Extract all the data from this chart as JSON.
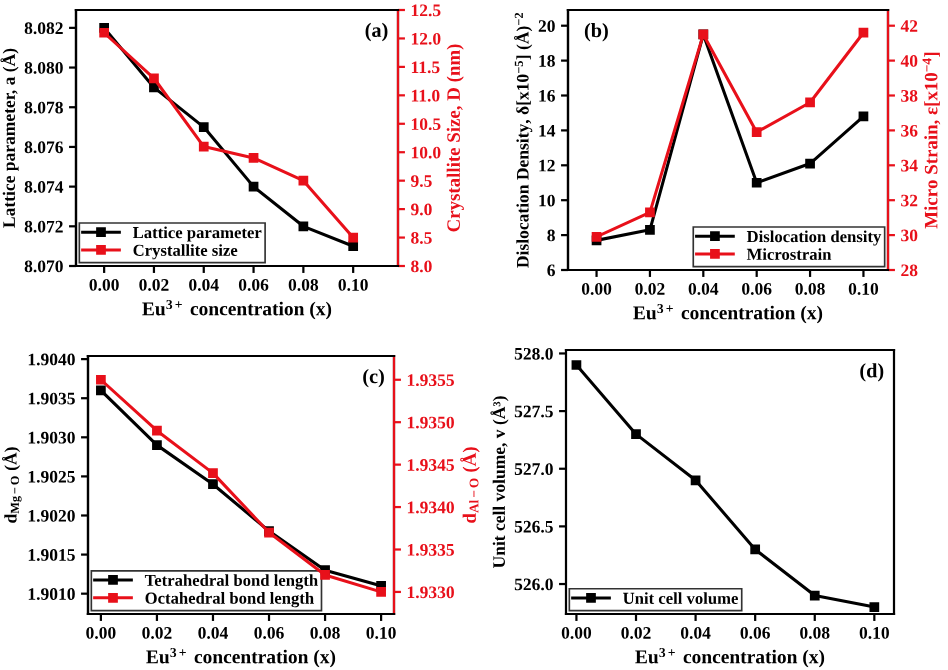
{
  "chart_data": [
    {
      "type": "line",
      "annotations": [
        "(a)"
      ],
      "xlabel": "Eu$^{3+}$ concentration (x)",
      "ylabel": "Lattice parameter, a (Å)",
      "y2label": "Crystallite Size, D (nm)",
      "x": [
        0.0,
        0.02,
        0.04,
        0.06,
        0.08,
        0.1
      ],
      "xlim": [
        -0.0113,
        0.118
      ],
      "xticks": [
        {
          "value": 0,
          "label": "0.00"
        },
        {
          "value": 0.02,
          "label": "0.02"
        },
        {
          "value": 0.04,
          "label": "0.04"
        },
        {
          "value": 0.06,
          "label": "0.06"
        },
        {
          "value": 0.08,
          "label": "0.08"
        },
        {
          "value": 0.1,
          "label": "0.10"
        }
      ],
      "ylim": [
        8.07,
        8.0829
      ],
      "yticks": [
        {
          "value": 8.07,
          "label": "8.070"
        },
        {
          "value": 8.072,
          "label": "8.072"
        },
        {
          "value": 8.074,
          "label": "8.074"
        },
        {
          "value": 8.076,
          "label": "8.076"
        },
        {
          "value": 8.078,
          "label": "8.078"
        },
        {
          "value": 8.08,
          "label": "8.080"
        },
        {
          "value": 8.082,
          "label": "8.082"
        }
      ],
      "y2lim": [
        8.0,
        12.5
      ],
      "y2ticks": [
        {
          "value": 8,
          "label": "8.0"
        },
        {
          "value": 8.5,
          "label": "8.5"
        },
        {
          "value": 9,
          "label": "9.0"
        },
        {
          "value": 9.5,
          "label": "9.5"
        },
        {
          "value": 10,
          "label": "10.0"
        },
        {
          "value": 10.5,
          "label": "10.5"
        },
        {
          "value": 11,
          "label": "11.0"
        },
        {
          "value": 11.5,
          "label": "11.5"
        },
        {
          "value": 12,
          "label": "12.0"
        },
        {
          "value": 12.5,
          "label": "12.5"
        }
      ],
      "marker": "square",
      "legend": "bottom left",
      "grid": false,
      "series": [
        {
          "name": "Lattice parameter",
          "color": "#000000",
          "values": [
            8.082,
            8.079,
            8.077,
            8.074,
            8.072,
            8.071
          ]
        },
        {
          "name": "Crystallite size",
          "color": "#e8101a",
          "axis": "y2",
          "values": [
            12.1,
            11.3,
            10.1,
            9.9,
            9.5,
            8.5
          ]
        }
      ]
    },
    {
      "type": "line",
      "annotations": [
        "(b)"
      ],
      "xlabel": "Eu$^{3+}$ concentration (x)",
      "ylabel": "Dislocation Density, δ[x10$^{−5}$] (Å)$^{−2}$",
      "y2label": "Micro Strain, ε[x10$^{−4}$]",
      "x": [
        0.0,
        0.02,
        0.04,
        0.06,
        0.08,
        0.1
      ],
      "xlim": [
        -0.0107,
        0.1092
      ],
      "xticks": [
        {
          "value": 0,
          "label": "0.00"
        },
        {
          "value": 0.02,
          "label": "0.02"
        },
        {
          "value": 0.04,
          "label": "0.04"
        },
        {
          "value": 0.06,
          "label": "0.06"
        },
        {
          "value": 0.08,
          "label": "0.08"
        },
        {
          "value": 0.1,
          "label": "0.10"
        }
      ],
      "ylim": [
        6,
        20.9
      ],
      "yticks": [
        6,
        8,
        10,
        12,
        14,
        16,
        18,
        20
      ],
      "y2lim": [
        28,
        42.9
      ],
      "y2ticks": [
        28,
        30,
        32,
        34,
        36,
        38,
        40,
        42
      ],
      "marker": "square",
      "legend": "bottom right",
      "grid": false,
      "series": [
        {
          "name": "Dislocation density",
          "color": "#000000",
          "values": [
            7.7,
            8.3,
            19.5,
            11.0,
            12.1,
            14.8
          ]
        },
        {
          "name": "Microstrain",
          "color": "#e8101a",
          "axis": "y2",
          "values": [
            29.9,
            31.3,
            41.5,
            35.9,
            37.6,
            41.6
          ]
        }
      ]
    },
    {
      "type": "line",
      "annotations": [
        "(c)"
      ],
      "xlabel": "Eu$^{3+}$ concentration (x)",
      "ylabel": "d$_{Mg−O}$ (Å)",
      "y2label": "d$_{Al−O}$ (Å)",
      "x": [
        0.0,
        0.02,
        0.04,
        0.06,
        0.08,
        0.1
      ],
      "xlim": [
        -0.0046,
        0.1046
      ],
      "xticks": [
        {
          "value": 0,
          "label": "0.00"
        },
        {
          "value": 0.02,
          "label": "0.02"
        },
        {
          "value": 0.04,
          "label": "0.04"
        },
        {
          "value": 0.06,
          "label": "0.06"
        },
        {
          "value": 0.08,
          "label": "0.08"
        },
        {
          "value": 0.1,
          "label": "0.10"
        }
      ],
      "ylim": [
        1.90074,
        1.90404
      ],
      "yticks": [
        {
          "value": 1.901,
          "label": "1.9010"
        },
        {
          "value": 1.9015,
          "label": "1.9015"
        },
        {
          "value": 1.902,
          "label": "1.9020"
        },
        {
          "value": 1.9025,
          "label": "1.9025"
        },
        {
          "value": 1.903,
          "label": "1.9030"
        },
        {
          "value": 1.9035,
          "label": "1.9035"
        },
        {
          "value": 1.904,
          "label": "1.9040"
        }
      ],
      "y2lim": [
        1.93274,
        1.93578
      ],
      "y2ticks": [
        {
          "value": 1.933,
          "label": "1.9330"
        },
        {
          "value": 1.9335,
          "label": "1.9335"
        },
        {
          "value": 1.934,
          "label": "1.9340"
        },
        {
          "value": 1.9345,
          "label": "1.9345"
        },
        {
          "value": 1.935,
          "label": "1.9350"
        },
        {
          "value": 1.9355,
          "label": "1.9355"
        }
      ],
      "marker": "square",
      "legend": "bottom left",
      "grid": false,
      "series": [
        {
          "name": "Tetrahedral bond length",
          "color": "#000000",
          "values": [
            1.9036,
            1.9029,
            1.9024,
            1.9018,
            1.9013,
            1.9011
          ]
        },
        {
          "name": "Octahedral bond length",
          "color": "#e8101a",
          "axis": "y2",
          "values": [
            1.9355,
            1.9349,
            1.9344,
            1.9337,
            1.9332,
            1.933
          ]
        }
      ]
    },
    {
      "type": "line",
      "annotations": [
        "(d)"
      ],
      "xlabel": "Eu$^{3+}$ concentration (x)",
      "ylabel": "Unit cell volume, v (Å³)",
      "x": [
        0.0,
        0.02,
        0.04,
        0.06,
        0.08,
        0.1
      ],
      "xlim": [
        -0.0035,
        0.1066
      ],
      "xticks": [
        {
          "value": 0,
          "label": "0.00"
        },
        {
          "value": 0.02,
          "label": "0.02"
        },
        {
          "value": 0.04,
          "label": "0.04"
        },
        {
          "value": 0.06,
          "label": "0.06"
        },
        {
          "value": 0.08,
          "label": "0.08"
        },
        {
          "value": 0.1,
          "label": "0.10"
        }
      ],
      "ylim": [
        525.74,
        528.03
      ],
      "yticks": [
        {
          "value": 526,
          "label": "526.0"
        },
        {
          "value": 526.5,
          "label": "526.5"
        },
        {
          "value": 527,
          "label": "527.0"
        },
        {
          "value": 527.5,
          "label": "527.5"
        },
        {
          "value": 528,
          "label": "528.0"
        }
      ],
      "marker": "square",
      "legend": "bottom left",
      "grid": false,
      "series": [
        {
          "name": "Unit cell volume",
          "color": "#000000",
          "values": [
            527.9,
            527.3,
            526.9,
            526.3,
            525.9,
            525.8
          ]
        }
      ]
    }
  ]
}
